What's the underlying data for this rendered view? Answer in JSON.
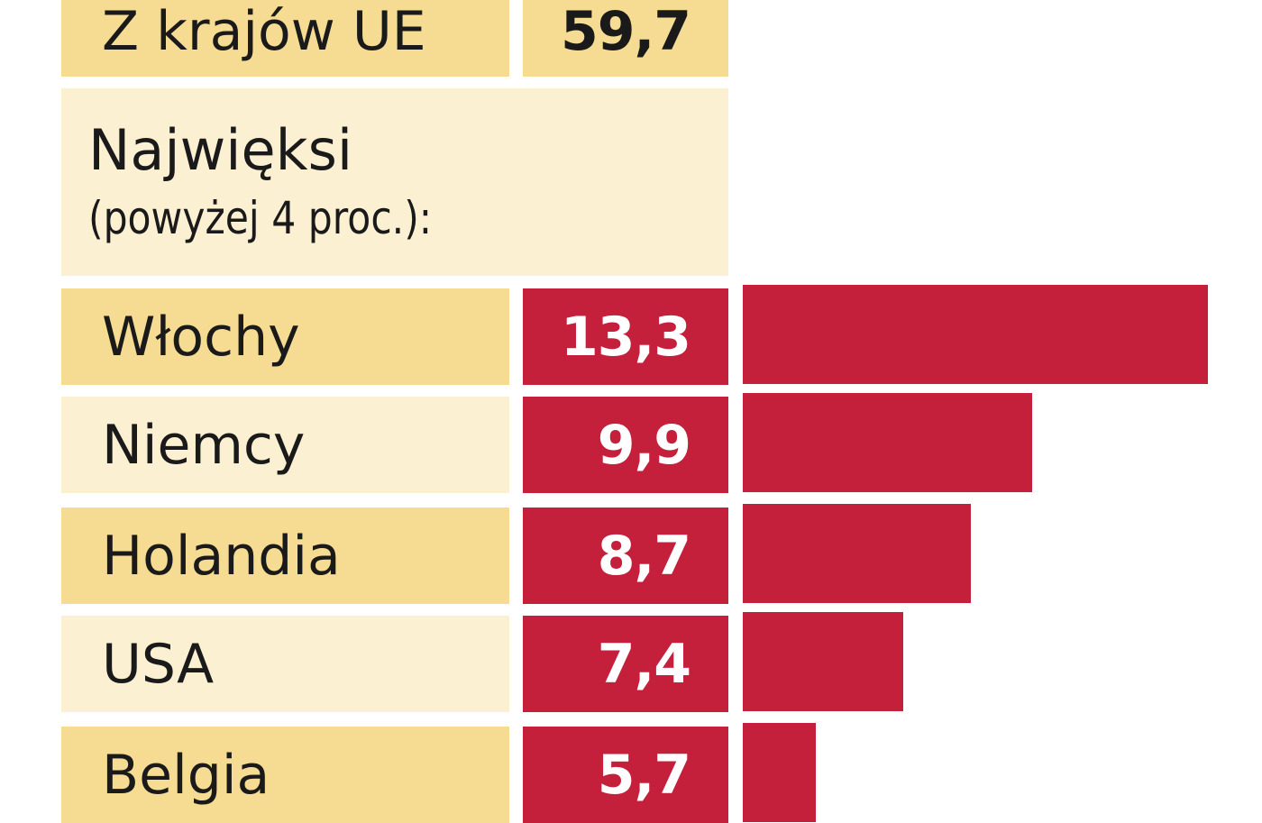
{
  "eu_row": {
    "label": "Z krajów UE",
    "value": "59,7"
  },
  "header": {
    "line1": "Najwięksi",
    "line2": "(powyżej 4 proc.):"
  },
  "chart_data": {
    "type": "bar",
    "orientation": "horizontal",
    "categories": [
      "Włochy",
      "Niemcy",
      "Holandia",
      "USA",
      "Belgia"
    ],
    "values": [
      13.3,
      9.9,
      8.7,
      7.4,
      5.7
    ],
    "value_labels": [
      "13,3",
      "9,9",
      "8,7",
      "7,4",
      "5,7"
    ],
    "colors": {
      "bar": "#c41f3b",
      "row_dark": "#f6dc92",
      "row_light": "#fcf0d2"
    }
  }
}
